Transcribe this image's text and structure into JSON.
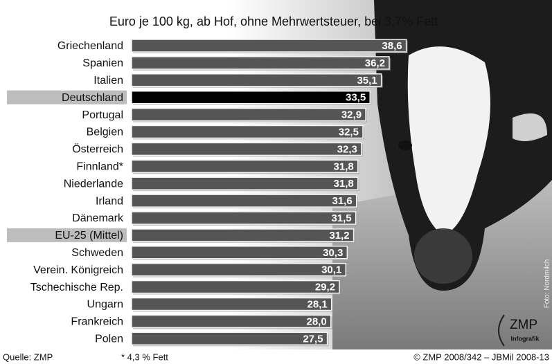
{
  "chart_data": {
    "type": "bar",
    "title": "Euro je 100 kg, ab Hof, ohne Mehrwertsteuer, bei 3,7% Fett",
    "categories": [
      "Griechenland",
      "Spanien",
      "Italien",
      "Deutschland",
      "Portugal",
      "Belgien",
      "Österreich",
      "Finnland*",
      "Niederlande",
      "Irland",
      "Dänemark",
      "EU-25 (Mittel)",
      "Schweden",
      "Verein. Königreich",
      "Tschechische Rep.",
      "Ungarn",
      "Frankreich",
      "Polen"
    ],
    "values": [
      38.6,
      36.2,
      35.1,
      33.5,
      32.9,
      32.5,
      32.3,
      31.8,
      31.8,
      31.6,
      31.5,
      31.2,
      30.3,
      30.1,
      29.2,
      28.1,
      28.0,
      27.5
    ],
    "value_labels": [
      "38,6",
      "36,2",
      "35,1",
      "33,5",
      "32,9",
      "32,5",
      "32,3",
      "31,8",
      "31,8",
      "31,6",
      "31,5",
      "31,2",
      "30,3",
      "30,1",
      "29,2",
      "28,1",
      "28,0",
      "27,5"
    ],
    "color": "#555555",
    "highlight_color": "#000000",
    "highlight_indices": [
      3,
      11
    ],
    "label_highlight_color": "#bdbdbd",
    "xlim": [
      0,
      40
    ],
    "source": "Quelle: ZMP",
    "note": "* 4,3 % Fett",
    "credit": "© ZMP 2008/342 – JBMil 2008-13",
    "photo_credit": "Foto: Nordmilch",
    "logo": "ZMP",
    "logo_subtitle": "Infografik"
  }
}
